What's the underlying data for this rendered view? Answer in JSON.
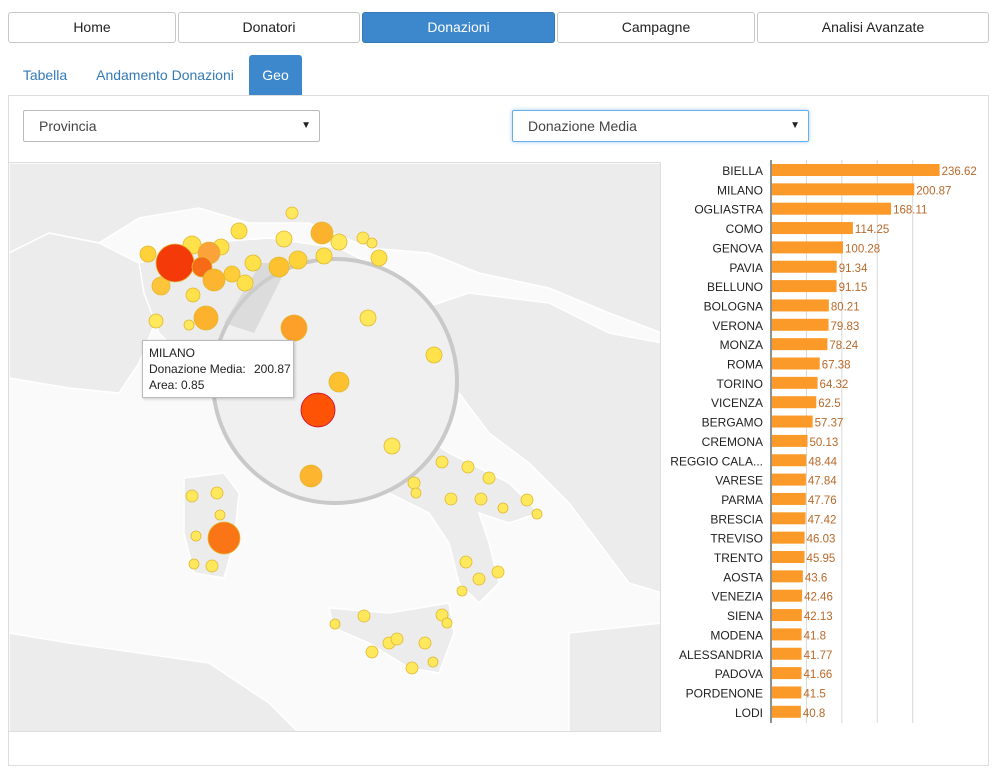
{
  "nav": {
    "items": [
      {
        "label": "Home",
        "active": false
      },
      {
        "label": "Donatori",
        "active": false
      },
      {
        "label": "Donazioni",
        "active": true
      },
      {
        "label": "Campagne",
        "active": false
      },
      {
        "label": "Analisi Avanzate",
        "active": false
      }
    ]
  },
  "subtabs": {
    "items": [
      {
        "label": "Tabella",
        "active": false
      },
      {
        "label": "Andamento Donazioni",
        "active": false
      },
      {
        "label": "Geo",
        "active": true
      }
    ]
  },
  "filters": {
    "area_select": "Provincia",
    "metric_select": "Donazione Media"
  },
  "tooltip": {
    "name": "MILANO",
    "metric_label": "Donazione Media:",
    "metric_value": "200.87",
    "area_label": "Area:",
    "area_value": "0.85"
  },
  "colors": {
    "bar": "#fb9a29",
    "accent": "#3d88cc",
    "bubble_low": "#ffeb5a",
    "bubble_high": "#f03b0a"
  },
  "chart_data": {
    "type": "bar",
    "orientation": "horizontal",
    "categories": [
      "BIELLA",
      "MILANO",
      "OGLIASTRA",
      "COMO",
      "GENOVA",
      "PAVIA",
      "BELLUNO",
      "BOLOGNA",
      "VERONA",
      "MONZA",
      "ROMA",
      "TORINO",
      "VICENZA",
      "BERGAMO",
      "CREMONA",
      "REGGIO CALA...",
      "VARESE",
      "PARMA",
      "BRESCIA",
      "TREVISO",
      "TRENTO",
      "AOSTA",
      "VENEZIA",
      "SIENA",
      "MODENA",
      "ALESSANDRIA",
      "PADOVA",
      "PORDENONE",
      "LODI"
    ],
    "values": [
      236.62,
      200.87,
      168.11,
      114.25,
      100.28,
      91.34,
      91.15,
      80.21,
      79.83,
      78.24,
      67.38,
      64.32,
      62.5,
      57.37,
      50.13,
      48.44,
      47.84,
      47.76,
      47.42,
      46.03,
      45.95,
      43.6,
      42.46,
      42.13,
      41.8,
      41.77,
      41.66,
      41.5,
      40.8
    ],
    "labels": [
      "236.62",
      "200.87",
      "168.11",
      "114.25",
      "100.28",
      "91.34",
      "91.15",
      "80.21",
      "79.83",
      "78.24",
      "67.38",
      "64.32",
      "62.5",
      "57.37",
      "50.13",
      "48.44",
      "47.84",
      "47.76",
      "47.42",
      "46.03",
      "45.95",
      "43.6",
      "42.46",
      "42.13",
      "41.8",
      "41.77",
      "41.66",
      "41.5",
      "40.8"
    ],
    "xlim": [
      0,
      240
    ],
    "title": "",
    "xlabel": "",
    "ylabel": ""
  }
}
